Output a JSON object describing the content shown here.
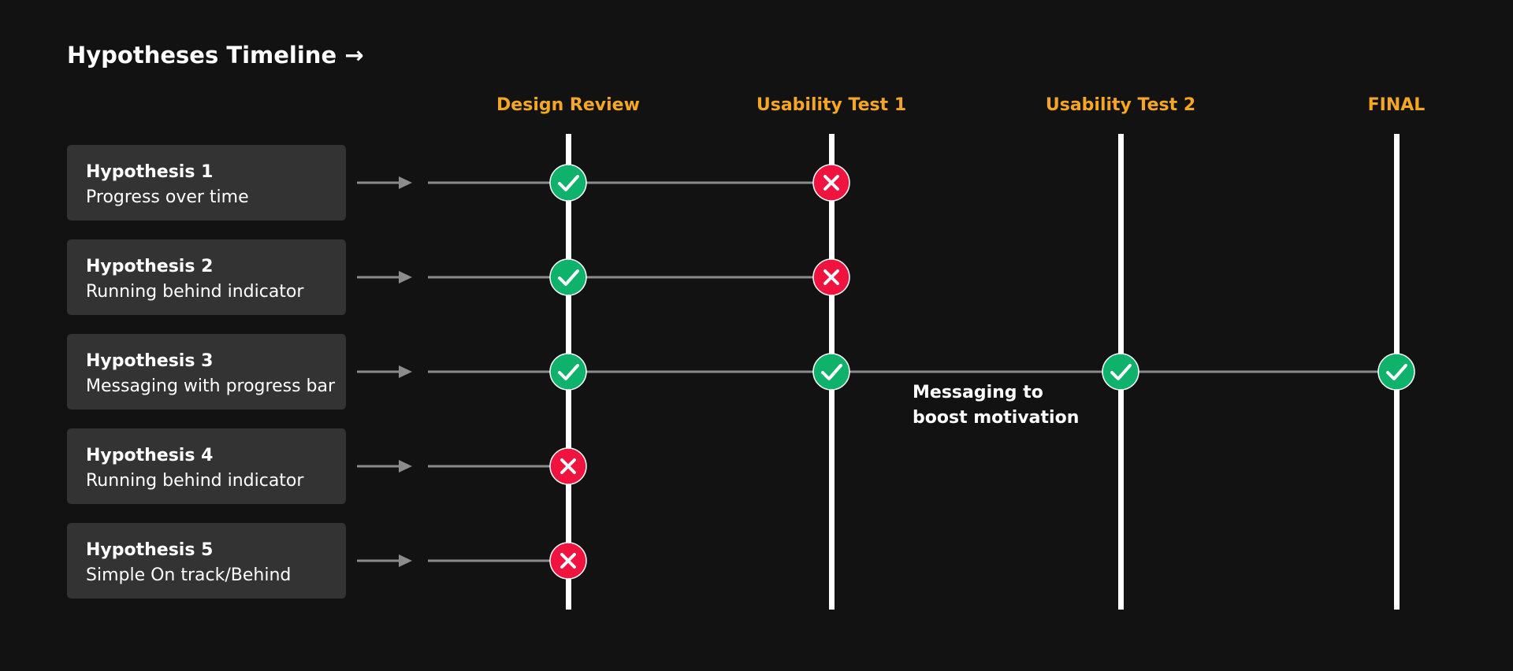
{
  "title": "Hypotheses Timeline →",
  "stages": [
    {
      "label": "Design Review"
    },
    {
      "label": "Usability Test 1"
    },
    {
      "label": "Usability Test 2"
    },
    {
      "label": "FINAL"
    }
  ],
  "hypotheses": [
    {
      "title": "Hypothesis 1",
      "description": "Progress over time",
      "results": [
        "pass",
        "fail"
      ]
    },
    {
      "title": "Hypothesis 2",
      "description": "Running behind indicator",
      "results": [
        "pass",
        "fail"
      ]
    },
    {
      "title": "Hypothesis 3",
      "description": "Messaging with progress bar",
      "results": [
        "pass",
        "pass",
        "pass",
        "pass"
      ]
    },
    {
      "title": "Hypothesis 4",
      "description": "Running behind indicator",
      "results": [
        "fail"
      ]
    },
    {
      "title": "Hypothesis 5",
      "description": "Simple On track/Behind",
      "results": [
        "fail"
      ]
    }
  ],
  "annotation": {
    "lines": [
      "Messaging to",
      "boost motivation"
    ]
  },
  "colors": {
    "background": "#121212",
    "card": "#333333",
    "stage_label": "#f5a623",
    "pass": "#0fb26a",
    "fail": "#f0123f",
    "connector": "#8c8c8c",
    "stage_line": "#ffffff"
  },
  "icons": {
    "pass": "check-icon",
    "fail": "x-icon",
    "connector": "arrow-right-icon"
  }
}
